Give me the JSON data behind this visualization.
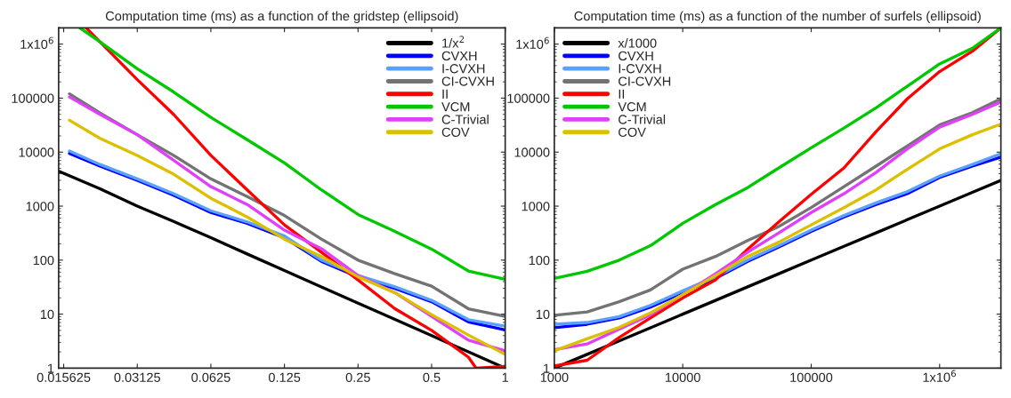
{
  "chart_data": [
    {
      "type": "line",
      "title": "Computation time (ms) as a function of the gridstep (ellipsoid)",
      "log": "xy",
      "legend": "top right",
      "line_style": "solid",
      "marker": "none",
      "xlim": [
        0.0149,
        1
      ],
      "xticks": [
        0.015625,
        0.03125,
        0.0625,
        0.125,
        0.25,
        0.5,
        1
      ],
      "ylim": [
        1,
        2000000
      ],
      "yticks": [
        1,
        10,
        100,
        1000,
        10000,
        100000,
        {
          "value": 1000000,
          "label": "1x10$^{6}$"
        }
      ],
      "x": [
        0.0165,
        0.022,
        0.03125,
        0.044,
        0.0625,
        0.088,
        0.125,
        0.177,
        0.25,
        0.354,
        0.5,
        0.707,
        1
      ],
      "series": [
        {
          "name": "1/x$^{2}$",
          "color": "#000000",
          "x": [
            0.015,
            0.022,
            0.03125,
            0.044,
            0.0625,
            0.088,
            0.125,
            0.177,
            0.25,
            0.354,
            0.5,
            0.707,
            1
          ],
          "values": [
            4400,
            2100,
            1000,
            520,
            260,
            130,
            64,
            32,
            16,
            8,
            4,
            2,
            1
          ]
        },
        {
          "name": "CVXH",
          "color": "#0000ff",
          "values": [
            9500,
            5500,
            3000,
            1600,
            760,
            480,
            260,
            95,
            49,
            30,
            17,
            7.2,
            5.1
          ]
        },
        {
          "name": "I-CVXH",
          "color": "#5aa0ff",
          "values": [
            10500,
            5900,
            3200,
            1700,
            820,
            510,
            280,
            100,
            52,
            32,
            18,
            7.9,
            6
          ]
        },
        {
          "name": "CI-CVXH",
          "color": "#737373",
          "values": [
            120000,
            53000,
            21000,
            8700,
            3200,
            1500,
            670,
            245,
            100,
            56,
            33,
            12.6,
            9.1
          ]
        },
        {
          "name": "II",
          "color": "#ff0000",
          "x": [
            0.0193,
            0.022,
            0.03125,
            0.044,
            0.0625,
            0.088,
            0.125,
            0.177,
            0.25,
            0.354,
            0.5,
            0.707,
            0.76,
            1
          ],
          "values": [
            2000000,
            1100000,
            220000,
            50000,
            8700,
            2000,
            450,
            140,
            43,
            12.6,
            5,
            1.6,
            1,
            1.08
          ]
        },
        {
          "name": "VCM",
          "color": "#00c800",
          "x": [
            0.0182,
            0.022,
            0.03125,
            0.044,
            0.0625,
            0.088,
            0.125,
            0.177,
            0.25,
            0.354,
            0.5,
            0.707,
            1
          ],
          "values": [
            2000000,
            1100000,
            350000,
            130000,
            44000,
            17000,
            6300,
            2000,
            700,
            340,
            160,
            63,
            44
          ]
        },
        {
          "name": "C-Trivial",
          "color": "#e040fb",
          "values": [
            105000,
            50000,
            21000,
            7100,
            2300,
            1070,
            360,
            163,
            52,
            25,
            9.1,
            3.3,
            2.1
          ]
        },
        {
          "name": "COV",
          "color": "#dcc000",
          "values": [
            39000,
            18000,
            8700,
            3900,
            1400,
            630,
            245,
            117,
            49,
            25,
            9.8,
            4.1,
            1.8
          ]
        }
      ]
    },
    {
      "type": "line",
      "title": "Computation time (ms) as a function of the number of surfels (ellipsoid)",
      "log": "xy",
      "legend": "top left",
      "line_style": "solid",
      "marker": "none",
      "xlim": [
        1000,
        3000000
      ],
      "xticks": [
        1000,
        10000,
        100000,
        {
          "value": 1000000,
          "label": "1x10$^{6}$"
        }
      ],
      "ylim": [
        1,
        2000000
      ],
      "yticks": [
        1,
        10,
        100,
        1000,
        10000,
        100000,
        {
          "value": 1000000,
          "label": "1x10$^{6}$"
        }
      ],
      "x": [
        1000,
        1800,
        3200,
        5600,
        10000,
        18000,
        32000,
        56000,
        100000,
        180000,
        320000,
        560000,
        1000000,
        1800000,
        3000000
      ],
      "series": [
        {
          "name": "x/1000",
          "color": "#000000",
          "values": [
            1,
            1.8,
            3.2,
            5.6,
            10,
            18,
            32,
            56,
            100,
            180,
            320,
            560,
            1000,
            1800,
            3000
          ]
        },
        {
          "name": "CVXH",
          "color": "#0000ff",
          "values": [
            5.6,
            6.5,
            8.5,
            13.5,
            25,
            46,
            95,
            175,
            340,
            630,
            1070,
            1700,
            3400,
            5500,
            8100
          ]
        },
        {
          "name": "I-CVXH",
          "color": "#5aa0ff",
          "values": [
            6.5,
            7,
            9,
            14.5,
            27,
            49,
            100,
            185,
            360,
            670,
            1150,
            1850,
            3600,
            5900,
            9300
          ]
        },
        {
          "name": "CI-CVXH",
          "color": "#737373",
          "values": [
            9.5,
            11,
            17,
            28,
            68,
            117,
            230,
            420,
            940,
            2300,
            5500,
            13000,
            32000,
            54000,
            97000
          ]
        },
        {
          "name": "II",
          "color": "#ff0000",
          "values": [
            1.1,
            1.4,
            3.7,
            8.5,
            20,
            43,
            160,
            510,
            1650,
            5100,
            24000,
            97000,
            310000,
            740000,
            2000000
          ]
        },
        {
          "name": "VCM",
          "color": "#00c800",
          "values": [
            46,
            62,
            100,
            185,
            480,
            1070,
            2200,
            5100,
            12000,
            28000,
            66000,
            166000,
            430000,
            840000,
            2000000
          ]
        },
        {
          "name": "C-Trivial",
          "color": "#e040fb",
          "values": [
            2.2,
            2.8,
            5.3,
            9.7,
            23,
            56,
            140,
            320,
            760,
            1700,
            4200,
            11500,
            29000,
            50000,
            85000
          ]
        },
        {
          "name": "COV",
          "color": "#dcc000",
          "values": [
            2.1,
            3.5,
            5.7,
            10.5,
            23,
            52,
            117,
            215,
            450,
            940,
            2000,
            4800,
            11500,
            21000,
            33000
          ]
        }
      ]
    }
  ]
}
